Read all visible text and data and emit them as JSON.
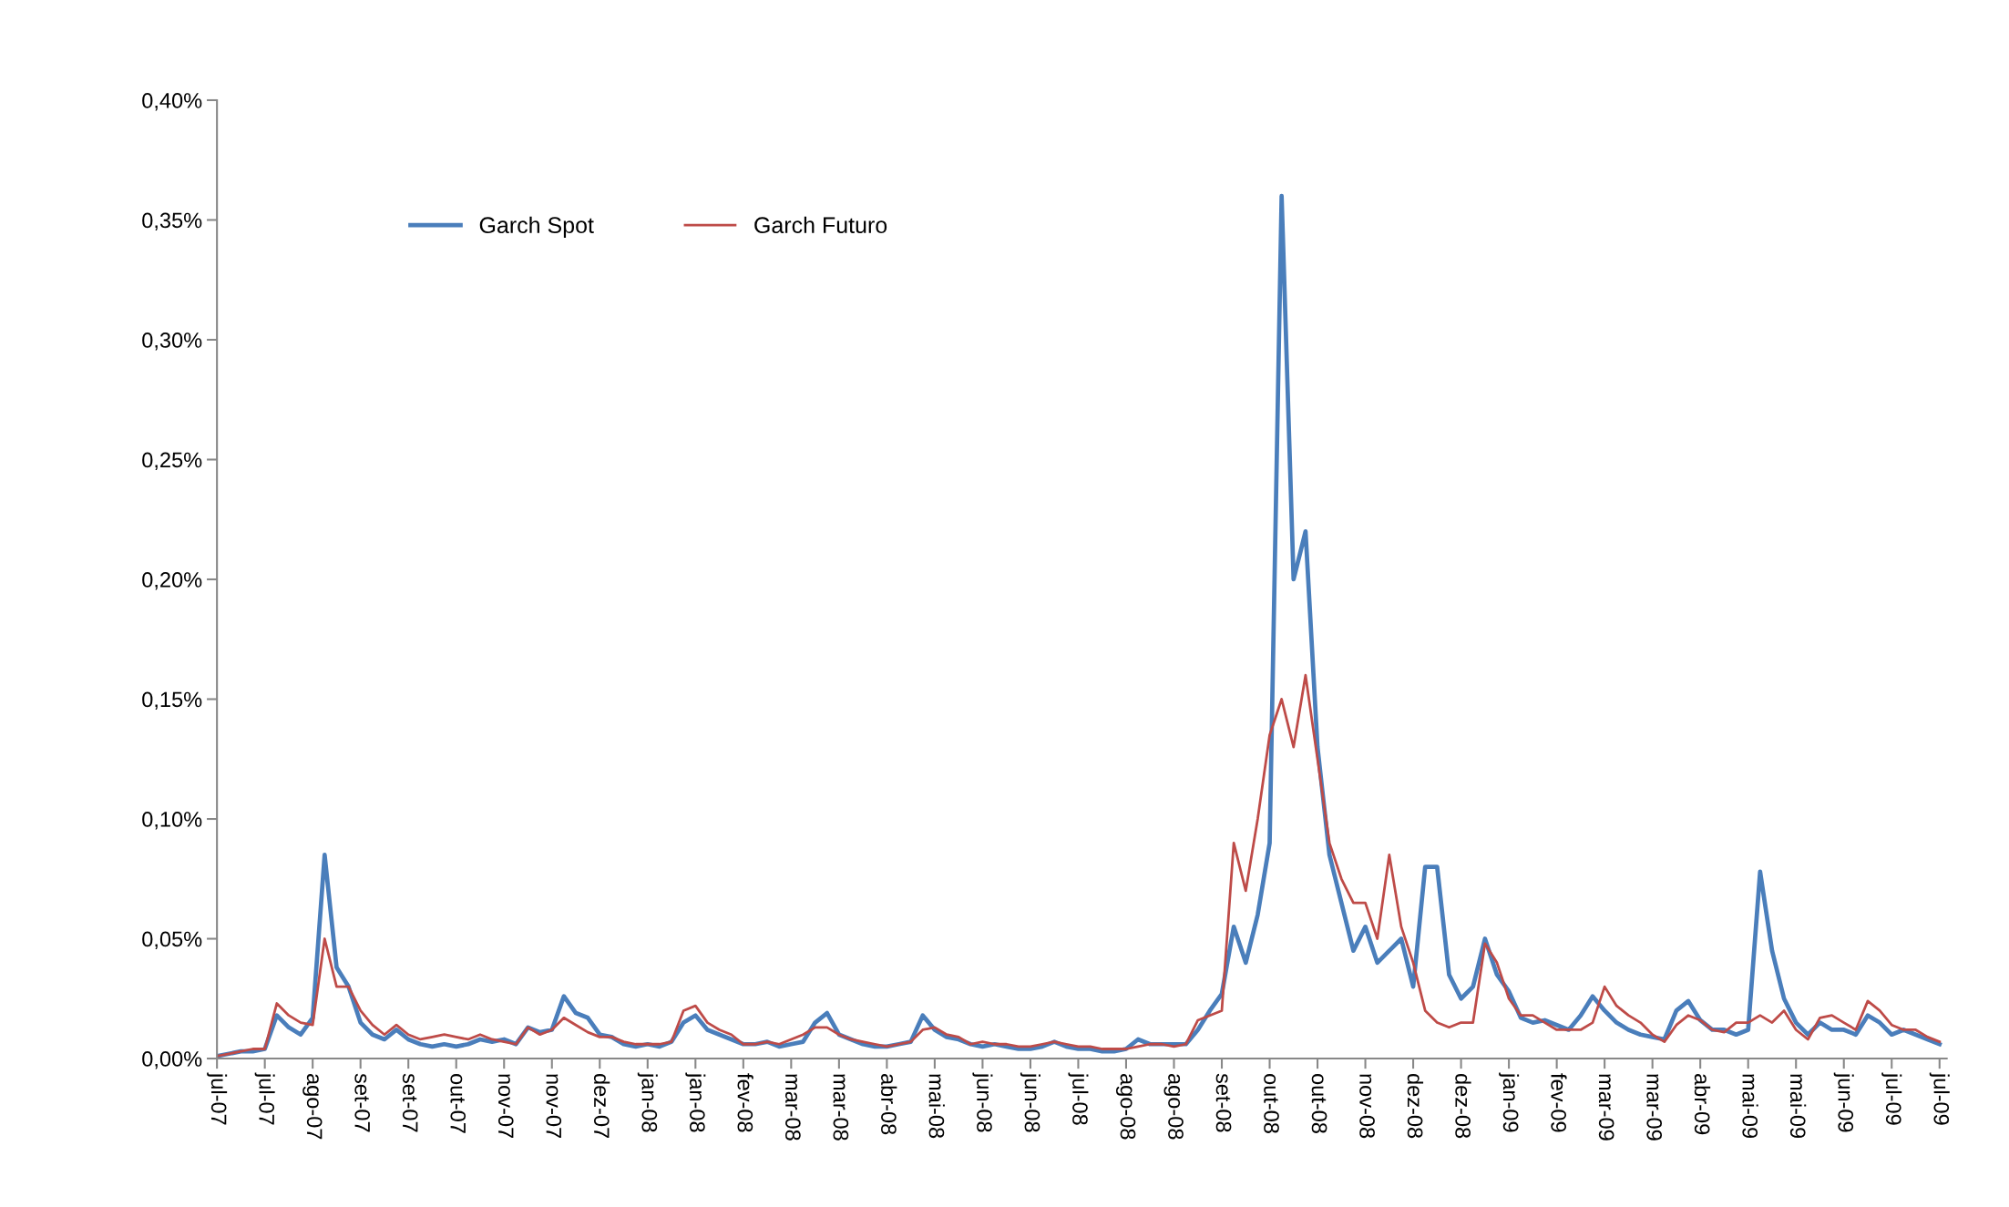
{
  "chart_data": {
    "type": "line",
    "categories": [
      "jul-07",
      null,
      null,
      null,
      "jul-07",
      null,
      null,
      null,
      "ago-07",
      null,
      null,
      null,
      "set-07",
      null,
      null,
      null,
      "set-07",
      null,
      null,
      null,
      "out-07",
      null,
      null,
      null,
      "nov-07",
      null,
      null,
      null,
      "nov-07",
      null,
      null,
      null,
      "dez-07",
      null,
      null,
      null,
      "jan-08",
      null,
      null,
      null,
      "jan-08",
      null,
      null,
      null,
      "fev-08",
      null,
      null,
      null,
      "mar-08",
      null,
      null,
      null,
      "mar-08",
      null,
      null,
      null,
      "abr-08",
      null,
      null,
      null,
      "mai-08",
      null,
      null,
      null,
      "jun-08",
      null,
      null,
      null,
      "jun-08",
      null,
      null,
      null,
      "jul-08",
      null,
      null,
      null,
      "ago-08",
      null,
      null,
      null,
      "ago-08",
      null,
      null,
      null,
      "set-08",
      null,
      null,
      null,
      "out-08",
      null,
      null,
      null,
      "out-08",
      null,
      null,
      null,
      "nov-08",
      null,
      null,
      null,
      "dez-08",
      null,
      null,
      null,
      "dez-08",
      null,
      null,
      null,
      "jan-09",
      null,
      null,
      null,
      "fev-09",
      null,
      null,
      null,
      "mar-09",
      null,
      null,
      null,
      "mar-09",
      null,
      null,
      null,
      "abr-09",
      null,
      null,
      null,
      "mai-09",
      null,
      null,
      null,
      "mai-09",
      null,
      null,
      null,
      "jun-09",
      null,
      null,
      null,
      "jul-09",
      null,
      null,
      null,
      "jul-09"
    ],
    "series": [
      {
        "name": "Garch Spot",
        "color": "#4a7ebb",
        "values": [
          0.001,
          0.002,
          0.003,
          0.003,
          0.004,
          0.018,
          0.013,
          0.01,
          0.017,
          0.085,
          0.038,
          0.03,
          0.015,
          0.01,
          0.008,
          0.012,
          0.008,
          0.006,
          0.005,
          0.006,
          0.005,
          0.006,
          0.008,
          0.007,
          0.008,
          0.006,
          0.013,
          0.011,
          0.012,
          0.026,
          0.019,
          0.017,
          0.01,
          0.009,
          0.006,
          0.005,
          0.006,
          0.005,
          0.007,
          0.015,
          0.018,
          0.012,
          0.01,
          0.008,
          0.006,
          0.006,
          0.007,
          0.005,
          0.006,
          0.007,
          0.015,
          0.019,
          0.01,
          0.008,
          0.006,
          0.005,
          0.005,
          0.006,
          0.007,
          0.018,
          0.012,
          0.009,
          0.008,
          0.006,
          0.005,
          0.006,
          0.005,
          0.004,
          0.004,
          0.005,
          0.007,
          0.005,
          0.004,
          0.004,
          0.003,
          0.003,
          0.004,
          0.008,
          0.006,
          0.006,
          0.006,
          0.006,
          0.012,
          0.02,
          0.027,
          0.055,
          0.04,
          0.06,
          0.09,
          0.36,
          0.2,
          0.22,
          0.13,
          0.085,
          0.065,
          0.045,
          0.055,
          0.04,
          0.045,
          0.05,
          0.03,
          0.08,
          0.08,
          0.035,
          0.025,
          0.03,
          0.05,
          0.035,
          0.028,
          0.017,
          0.015,
          0.016,
          0.014,
          0.012,
          0.018,
          0.026,
          0.02,
          0.015,
          0.012,
          0.01,
          0.009,
          0.008,
          0.02,
          0.024,
          0.016,
          0.012,
          0.012,
          0.01,
          0.012,
          0.078,
          0.045,
          0.025,
          0.015,
          0.01,
          0.015,
          0.012,
          0.012,
          0.01,
          0.018,
          0.015,
          0.01,
          0.012,
          0.01,
          0.008,
          0.006
        ]
      },
      {
        "name": "Garch Futuro",
        "color": "#be4b48",
        "values": [
          0.001,
          0.002,
          0.003,
          0.004,
          0.004,
          0.023,
          0.018,
          0.015,
          0.014,
          0.05,
          0.03,
          0.03,
          0.02,
          0.014,
          0.01,
          0.014,
          0.01,
          0.008,
          0.009,
          0.01,
          0.009,
          0.008,
          0.01,
          0.008,
          0.007,
          0.006,
          0.013,
          0.01,
          0.012,
          0.017,
          0.014,
          0.011,
          0.009,
          0.009,
          0.007,
          0.006,
          0.006,
          0.006,
          0.007,
          0.02,
          0.022,
          0.015,
          0.012,
          0.01,
          0.006,
          0.006,
          0.007,
          0.006,
          0.008,
          0.01,
          0.013,
          0.013,
          0.01,
          0.008,
          0.007,
          0.006,
          0.005,
          0.006,
          0.007,
          0.012,
          0.013,
          0.01,
          0.009,
          0.006,
          0.007,
          0.006,
          0.006,
          0.005,
          0.005,
          0.006,
          0.007,
          0.006,
          0.005,
          0.005,
          0.004,
          0.004,
          0.004,
          0.005,
          0.006,
          0.006,
          0.005,
          0.006,
          0.016,
          0.018,
          0.02,
          0.09,
          0.07,
          0.1,
          0.135,
          0.15,
          0.13,
          0.16,
          0.125,
          0.09,
          0.075,
          0.065,
          0.065,
          0.05,
          0.085,
          0.055,
          0.04,
          0.02,
          0.015,
          0.013,
          0.015,
          0.015,
          0.048,
          0.04,
          0.025,
          0.018,
          0.018,
          0.015,
          0.012,
          0.012,
          0.012,
          0.015,
          0.03,
          0.022,
          0.018,
          0.015,
          0.01,
          0.007,
          0.014,
          0.018,
          0.016,
          0.012,
          0.011,
          0.015,
          0.015,
          0.018,
          0.015,
          0.02,
          0.012,
          0.008,
          0.017,
          0.018,
          0.015,
          0.012,
          0.024,
          0.02,
          0.014,
          0.012,
          0.012,
          0.009,
          0.007
        ]
      }
    ],
    "ylim": [
      0,
      0.4
    ],
    "yticks": [
      {
        "value": 0,
        "label": "0,00%"
      },
      {
        "value": 0.05,
        "label": "0,05%"
      },
      {
        "value": 0.1,
        "label": "0,10%"
      },
      {
        "value": 0.15,
        "label": "0,15%"
      },
      {
        "value": 0.2,
        "label": "0,20%"
      },
      {
        "value": 0.25,
        "label": "0,25%"
      },
      {
        "value": 0.3,
        "label": "0,30%"
      },
      {
        "value": 0.35,
        "label": "0,35%"
      },
      {
        "value": 0.4,
        "label": "0,40%"
      }
    ],
    "legend": "top left",
    "grid": false,
    "marker": "none",
    "line_style": "solid"
  }
}
